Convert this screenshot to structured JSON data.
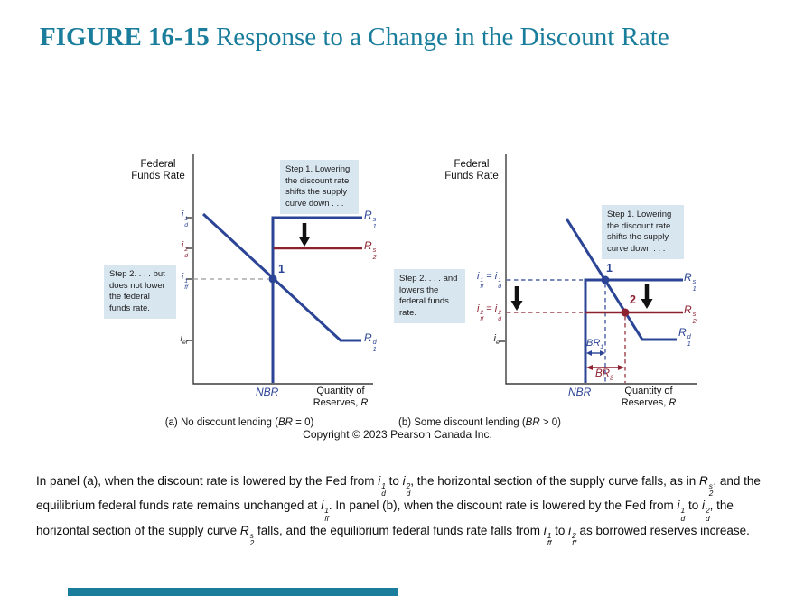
{
  "title": {
    "label_bold": "FIGURE 16-15",
    "label_rest": " Response to a Change in the Discount Rate"
  },
  "colors": {
    "teal": "#1a7d9c",
    "blue": "#2b4495",
    "red": "#8e2130",
    "box-bg": "#d8e6f0",
    "axis": "#3c3c3c",
    "gray-dash": "#9a9a9a"
  },
  "panels": {
    "a": {
      "y_axis_title": "Federal Funds Rate",
      "x_axis_title": "Quantity of Reserves, {R}",
      "tick_id1": "{i^1_d}",
      "tick_id2": "{i^2_d}",
      "tick_iff1": "{i^1_ff}",
      "tick_ier": "{i_er}",
      "label_s1": "{R^s_1}",
      "label_s2": "{R^s_2}",
      "label_d1": "{R^d_1}",
      "point1": "1",
      "nbr": "{NBR}",
      "step1": "Step 1. Lowering the discount rate shifts the supply curve down . . .",
      "step2": "Step 2. . . . but does not lower the federal funds rate.",
      "caption": "(a) No discount lending ({BR} = 0)"
    },
    "b": {
      "y_axis_title": "Federal Funds Rate",
      "x_axis_title": "Quantity of Reserves, {R}",
      "tick_i1": "{i^1_ff = i^1_d}",
      "tick_i2": "{i^2_ff = i^2_d}",
      "tick_ier": "{i_er}",
      "label_s1": "{R^s_1}",
      "label_s2": "{R^s_2}",
      "label_d1": "{R^d_1}",
      "point1": "1",
      "point2": "2",
      "br1": "{BR_1}",
      "br2": "{BR_2}",
      "nbr": "{NBR}",
      "step1": "Step 1. Lowering the discount rate shifts the supply curve down . . .",
      "step2": "Step 2. . . . and lowers the federal funds rate.",
      "caption": "(b) Some discount lending ({BR} > 0)"
    }
  },
  "copyright": "Copyright © 2023 Pearson Canada Inc.",
  "description": "In panel (a), when the discount rate is lowered by the Fed from {i^1_d} to {i^2_d}, the horizontal section of the supply curve falls, as in {R^s_2}, and the equilibrium federal funds rate remains unchanged at {i^1_ff}. In panel (b), when the discount rate is lowered by the Fed from {i^1_d} to {i^2_d}, the horizontal section of the supply curve {R^s_2} falls, and the equilibrium federal funds rate falls from {i^1_ff} to {i^2_ff} as borrowed reserves increase."
}
